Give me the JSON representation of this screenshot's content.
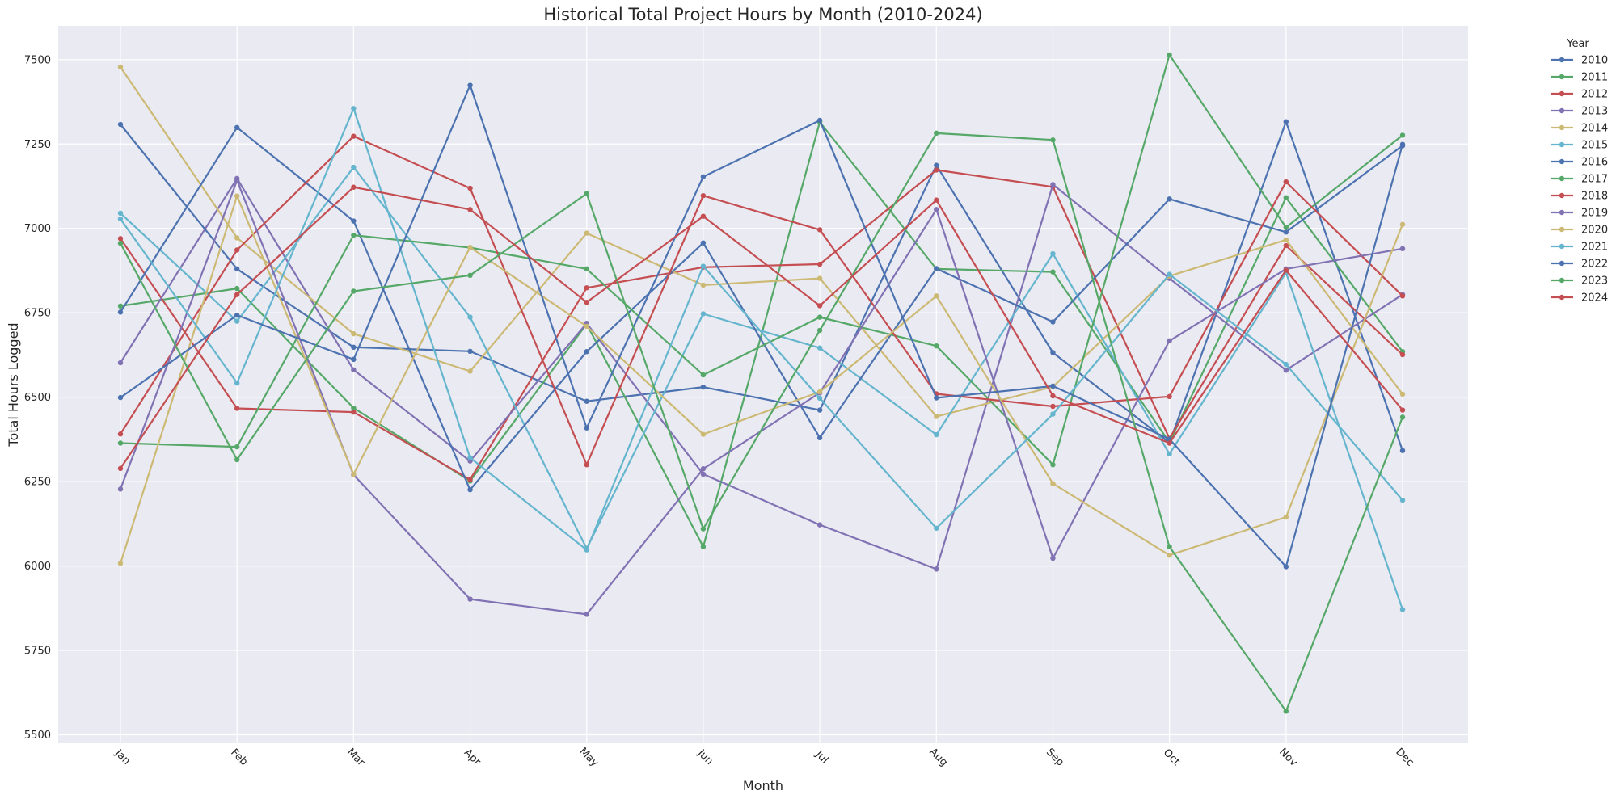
{
  "chart_data": {
    "type": "line",
    "title": "Historical Total Project Hours by Month (2010-2024)",
    "xlabel": "Month",
    "ylabel": "Total Hours Logged",
    "categories": [
      "Jan",
      "Feb",
      "Mar",
      "Apr",
      "May",
      "Jun",
      "Jul",
      "Aug",
      "Sep",
      "Oct",
      "Nov",
      "Dec"
    ],
    "ylim": [
      5475,
      7600
    ],
    "yticks": [
      5500,
      5750,
      6000,
      6250,
      6500,
      6750,
      7000,
      7250,
      7500
    ],
    "grid": true,
    "legend_title": "Year",
    "legend_position": "outside-right",
    "background": "#eaeaf2",
    "series": [
      {
        "name": "2010",
        "color": "#4c72b0",
        "values": [
          7308,
          6880,
          6648,
          6636,
          6488,
          6530,
          6462,
          7187,
          6632,
          6365,
          7316,
          6342
        ]
      },
      {
        "name": "2011",
        "color": "#55a868",
        "values": [
          6770,
          6822,
          6468,
          6252,
          6717,
          6057,
          7315,
          6880,
          6871,
          6366,
          7091,
          6635
        ]
      },
      {
        "name": "2012",
        "color": "#c44e52",
        "values": [
          6970,
          6467,
          6456,
          6256,
          6824,
          6885,
          6894,
          7173,
          7123,
          6378,
          6949,
          6626
        ]
      },
      {
        "name": "2013",
        "color": "#8172b3",
        "values": [
          6602,
          7148,
          6581,
          6311,
          6719,
          6272,
          6122,
          5991,
          7130,
          6852,
          6580,
          6804
        ]
      },
      {
        "name": "2014",
        "color": "#ccb974",
        "values": [
          7478,
          6972,
          6688,
          6577,
          6986,
          6832,
          6852,
          6443,
          6531,
          6859,
          6966,
          6509
        ]
      },
      {
        "name": "2015",
        "color": "#64b5cd",
        "values": [
          7045,
          6725,
          7181,
          6737,
          6052,
          6747,
          6646,
          6389,
          6925,
          6332,
          6869,
          5871
        ]
      },
      {
        "name": "2016",
        "color": "#4c72b0",
        "values": [
          6752,
          7299,
          7022,
          6226,
          6635,
          6957,
          6380,
          6881,
          6723,
          7087,
          6989,
          7245
        ]
      },
      {
        "name": "2017",
        "color": "#55a868",
        "values": [
          6364,
          6353,
          6980,
          6943,
          6880,
          6566,
          6737,
          6652,
          6300,
          7514,
          7003,
          7276
        ]
      },
      {
        "name": "2018",
        "color": "#c44e52",
        "values": [
          6391,
          6936,
          7273,
          7119,
          6300,
          7097,
          6996,
          6510,
          6473,
          6502,
          7138,
          6800
        ]
      },
      {
        "name": "2019",
        "color": "#8172b3",
        "values": [
          6228,
          7142,
          6270,
          5902,
          5857,
          6288,
          6513,
          7056,
          6023,
          6667,
          6880,
          6940
        ]
      },
      {
        "name": "2020",
        "color": "#ccb974",
        "values": [
          6008,
          7096,
          6272,
          6944,
          6710,
          6390,
          6516,
          6800,
          6244,
          6032,
          6145,
          7012
        ]
      },
      {
        "name": "2021",
        "color": "#64b5cd",
        "values": [
          7028,
          6542,
          7355,
          6321,
          6048,
          6888,
          6497,
          6112,
          6450,
          6864,
          6597,
          6195
        ]
      },
      {
        "name": "2022",
        "color": "#4c72b0",
        "values": [
          6499,
          6743,
          6612,
          7424,
          6409,
          7153,
          7320,
          6498,
          6533,
          6376,
          5998,
          7249
        ]
      },
      {
        "name": "2023",
        "color": "#55a868",
        "values": [
          6956,
          6315,
          6814,
          6861,
          7103,
          6110,
          6698,
          7282,
          7262,
          6057,
          5570,
          6441
        ]
      },
      {
        "name": "2024",
        "color": "#c44e52",
        "values": [
          6289,
          6804,
          7122,
          7056,
          6781,
          7036,
          6771,
          7084,
          6504,
          6364,
          6876,
          6462
        ]
      }
    ]
  }
}
